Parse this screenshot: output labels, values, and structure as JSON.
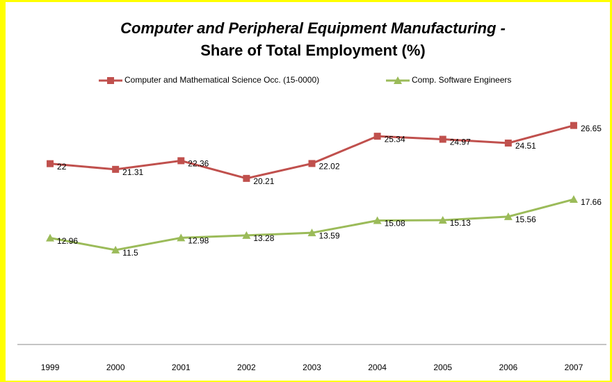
{
  "chart_data": {
    "type": "line",
    "title": "Computer and Peripheral Equipment Manufacturing -",
    "subtitle": "Share of Total Employment (%)",
    "categories": [
      "1999",
      "2000",
      "2001",
      "2002",
      "2003",
      "2004",
      "2005",
      "2006",
      "2007"
    ],
    "series": [
      {
        "name": "Computer and Mathematical  Science Occ. (15-0000)",
        "color": "#c0504d",
        "marker": "square",
        "values": [
          22,
          21.31,
          22.36,
          20.21,
          22.02,
          25.34,
          24.97,
          24.51,
          26.65
        ]
      },
      {
        "name": "Comp. Software Engineers",
        "color": "#9bbb59",
        "marker": "triangle",
        "values": [
          12.96,
          11.5,
          12.98,
          13.28,
          13.59,
          15.08,
          15.13,
          15.56,
          17.66
        ]
      }
    ],
    "ylim": [
      0,
      30
    ]
  }
}
